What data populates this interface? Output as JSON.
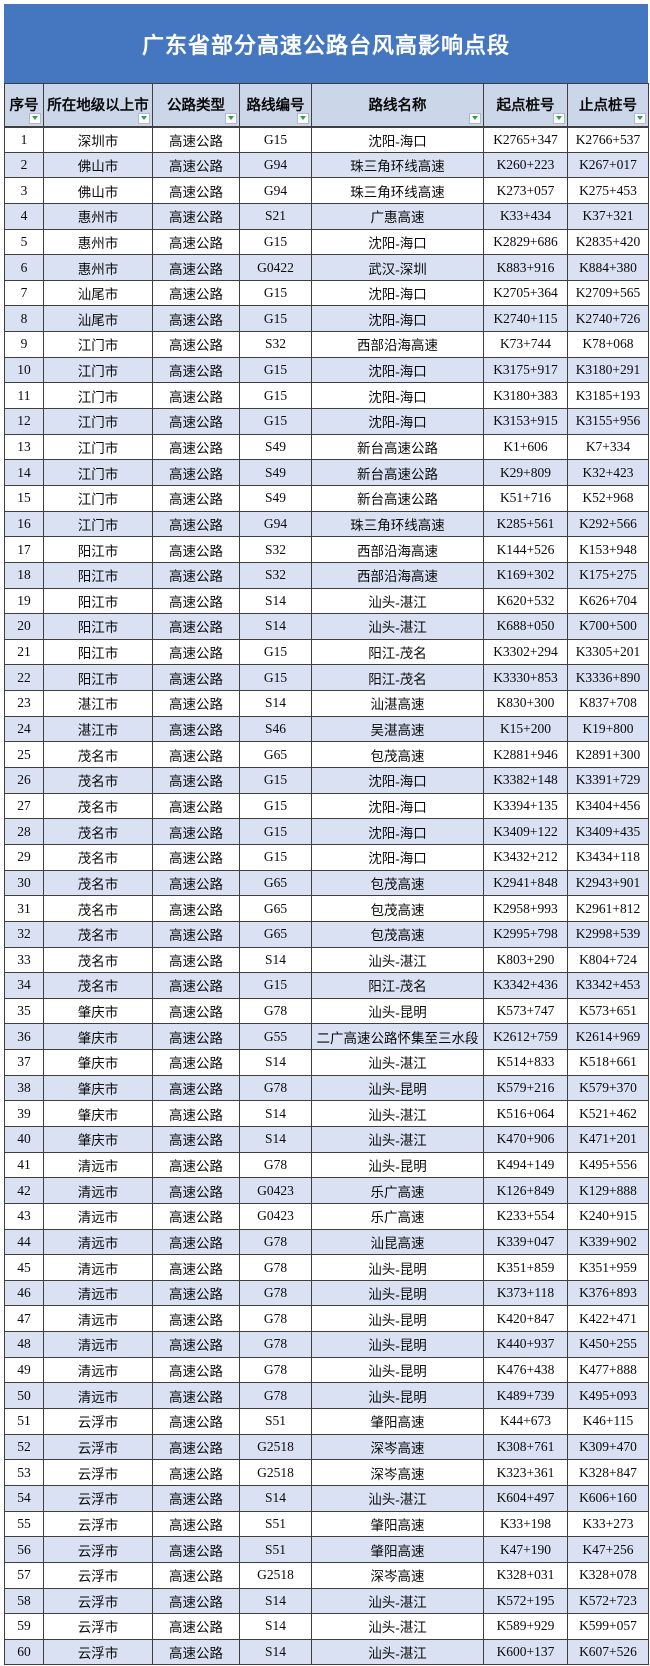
{
  "title": "广东省部分高速公路台风高影响点段",
  "colors": {
    "title_bar": "#4577C1",
    "header_bg": "#CCD6E9",
    "even_row_bg": "#DAE1F3",
    "odd_row_bg": "#FFFFFF",
    "grid_line": "#3F3F3F",
    "filter_triangle": "#2E9E4F"
  },
  "icons": {
    "header_filter": "filter-dropdown-icon"
  },
  "table": {
    "columns": [
      "序号",
      "所在地级以上市",
      "公路类型",
      "路线编号",
      "路线名称",
      "起点桩号",
      "止点桩号"
    ],
    "rows": [
      [
        1,
        "深圳市",
        "高速公路",
        "G15",
        "沈阳-海口",
        "K2765+347",
        "K2766+537"
      ],
      [
        2,
        "佛山市",
        "高速公路",
        "G94",
        "珠三角环线高速",
        "K260+223",
        "K267+017"
      ],
      [
        3,
        "佛山市",
        "高速公路",
        "G94",
        "珠三角环线高速",
        "K273+057",
        "K275+453"
      ],
      [
        4,
        "惠州市",
        "高速公路",
        "S21",
        "广惠高速",
        "K33+434",
        "K37+321"
      ],
      [
        5,
        "惠州市",
        "高速公路",
        "G15",
        "沈阳-海口",
        "K2829+686",
        "K2835+420"
      ],
      [
        6,
        "惠州市",
        "高速公路",
        "G0422",
        "武汉-深圳",
        "K883+916",
        "K884+380"
      ],
      [
        7,
        "汕尾市",
        "高速公路",
        "G15",
        "沈阳-海口",
        "K2705+364",
        "K2709+565"
      ],
      [
        8,
        "汕尾市",
        "高速公路",
        "G15",
        "沈阳-海口",
        "K2740+115",
        "K2740+726"
      ],
      [
        9,
        "江门市",
        "高速公路",
        "S32",
        "西部沿海高速",
        "K73+744",
        "K78+068"
      ],
      [
        10,
        "江门市",
        "高速公路",
        "G15",
        "沈阳-海口",
        "K3175+917",
        "K3180+291"
      ],
      [
        11,
        "江门市",
        "高速公路",
        "G15",
        "沈阳-海口",
        "K3180+383",
        "K3185+193"
      ],
      [
        12,
        "江门市",
        "高速公路",
        "G15",
        "沈阳-海口",
        "K3153+915",
        "K3155+956"
      ],
      [
        13,
        "江门市",
        "高速公路",
        "S49",
        "新台高速公路",
        "K1+606",
        "K7+334"
      ],
      [
        14,
        "江门市",
        "高速公路",
        "S49",
        "新台高速公路",
        "K29+809",
        "K32+423"
      ],
      [
        15,
        "江门市",
        "高速公路",
        "S49",
        "新台高速公路",
        "K51+716",
        "K52+968"
      ],
      [
        16,
        "江门市",
        "高速公路",
        "G94",
        "珠三角环线高速",
        "K285+561",
        "K292+566"
      ],
      [
        17,
        "阳江市",
        "高速公路",
        "S32",
        "西部沿海高速",
        "K144+526",
        "K153+948"
      ],
      [
        18,
        "阳江市",
        "高速公路",
        "S32",
        "西部沿海高速",
        "K169+302",
        "K175+275"
      ],
      [
        19,
        "阳江市",
        "高速公路",
        "S14",
        "汕头-湛江",
        "K620+532",
        "K626+704"
      ],
      [
        20,
        "阳江市",
        "高速公路",
        "S14",
        "汕头-湛江",
        "K688+050",
        "K700+500"
      ],
      [
        21,
        "阳江市",
        "高速公路",
        "G15",
        "阳江-茂名",
        "K3302+294",
        "K3305+201"
      ],
      [
        22,
        "阳江市",
        "高速公路",
        "G15",
        "阳江-茂名",
        "K3330+853",
        "K3336+890"
      ],
      [
        23,
        "湛江市",
        "高速公路",
        "S14",
        "汕湛高速",
        "K830+300",
        "K837+708"
      ],
      [
        24,
        "湛江市",
        "高速公路",
        "S46",
        "吴湛高速",
        "K15+200",
        "K19+800"
      ],
      [
        25,
        "茂名市",
        "高速公路",
        "G65",
        "包茂高速",
        "K2881+946",
        "K2891+300"
      ],
      [
        26,
        "茂名市",
        "高速公路",
        "G15",
        "沈阳-海口",
        "K3382+148",
        "K3391+729"
      ],
      [
        27,
        "茂名市",
        "高速公路",
        "G15",
        "沈阳-海口",
        "K3394+135",
        "K3404+456"
      ],
      [
        28,
        "茂名市",
        "高速公路",
        "G15",
        "沈阳-海口",
        "K3409+122",
        "K3409+435"
      ],
      [
        29,
        "茂名市",
        "高速公路",
        "G15",
        "沈阳-海口",
        "K3432+212",
        "K3434+118"
      ],
      [
        30,
        "茂名市",
        "高速公路",
        "G65",
        "包茂高速",
        "K2941+848",
        "K2943+901"
      ],
      [
        31,
        "茂名市",
        "高速公路",
        "G65",
        "包茂高速",
        "K2958+993",
        "K2961+812"
      ],
      [
        32,
        "茂名市",
        "高速公路",
        "G65",
        "包茂高速",
        "K2995+798",
        "K2998+539"
      ],
      [
        33,
        "茂名市",
        "高速公路",
        "S14",
        "汕头-湛江",
        "K803+290",
        "K804+724"
      ],
      [
        34,
        "茂名市",
        "高速公路",
        "G15",
        "阳江-茂名",
        "K3342+436",
        "K3342+453"
      ],
      [
        35,
        "肇庆市",
        "高速公路",
        "G78",
        "汕头-昆明",
        "K573+747",
        "K573+651"
      ],
      [
        36,
        "肇庆市",
        "高速公路",
        "G55",
        "二广高速公路怀集至三水段",
        "K2612+759",
        "K2614+969"
      ],
      [
        37,
        "肇庆市",
        "高速公路",
        "S14",
        "汕头-湛江",
        "K514+833",
        "K518+661"
      ],
      [
        38,
        "肇庆市",
        "高速公路",
        "G78",
        "汕头-昆明",
        "K579+216",
        "K579+370"
      ],
      [
        39,
        "肇庆市",
        "高速公路",
        "S14",
        "汕头-湛江",
        "K516+064",
        "K521+462"
      ],
      [
        40,
        "肇庆市",
        "高速公路",
        "S14",
        "汕头-湛江",
        "K470+906",
        "K471+201"
      ],
      [
        41,
        "清远市",
        "高速公路",
        "G78",
        "汕头-昆明",
        "K494+149",
        "K495+556"
      ],
      [
        42,
        "清远市",
        "高速公路",
        "G0423",
        "乐广高速",
        "K126+849",
        "K129+888"
      ],
      [
        43,
        "清远市",
        "高速公路",
        "G0423",
        "乐广高速",
        "K233+554",
        "K240+915"
      ],
      [
        44,
        "清远市",
        "高速公路",
        "G78",
        "汕昆高速",
        "K339+047",
        "K339+902"
      ],
      [
        45,
        "清远市",
        "高速公路",
        "G78",
        "汕头-昆明",
        "K351+859",
        "K351+959"
      ],
      [
        46,
        "清远市",
        "高速公路",
        "G78",
        "汕头-昆明",
        "K373+118",
        "K376+893"
      ],
      [
        47,
        "清远市",
        "高速公路",
        "G78",
        "汕头-昆明",
        "K420+847",
        "K422+471"
      ],
      [
        48,
        "清远市",
        "高速公路",
        "G78",
        "汕头-昆明",
        "K440+937",
        "K450+255"
      ],
      [
        49,
        "清远市",
        "高速公路",
        "G78",
        "汕头-昆明",
        "K476+438",
        "K477+888"
      ],
      [
        50,
        "清远市",
        "高速公路",
        "G78",
        "汕头-昆明",
        "K489+739",
        "K495+093"
      ],
      [
        51,
        "云浮市",
        "高速公路",
        "S51",
        "肇阳高速",
        "K44+673",
        "K46+115"
      ],
      [
        52,
        "云浮市",
        "高速公路",
        "G2518",
        "深岑高速",
        "K308+761",
        "K309+470"
      ],
      [
        53,
        "云浮市",
        "高速公路",
        "G2518",
        "深岑高速",
        "K323+361",
        "K328+847"
      ],
      [
        54,
        "云浮市",
        "高速公路",
        "S14",
        "汕头-湛江",
        "K604+497",
        "K606+160"
      ],
      [
        55,
        "云浮市",
        "高速公路",
        "S51",
        "肇阳高速",
        "K33+198",
        "K33+273"
      ],
      [
        56,
        "云浮市",
        "高速公路",
        "S51",
        "肇阳高速",
        "K47+190",
        "K47+256"
      ],
      [
        57,
        "云浮市",
        "高速公路",
        "G2518",
        "深岑高速",
        "K328+031",
        "K328+078"
      ],
      [
        58,
        "云浮市",
        "高速公路",
        "S14",
        "汕头-湛江",
        "K572+195",
        "K572+723"
      ],
      [
        59,
        "云浮市",
        "高速公路",
        "S14",
        "汕头-湛江",
        "K589+929",
        "K599+057"
      ],
      [
        60,
        "云浮市",
        "高速公路",
        "S14",
        "汕头-湛江",
        "K600+137",
        "K607+526"
      ]
    ]
  }
}
